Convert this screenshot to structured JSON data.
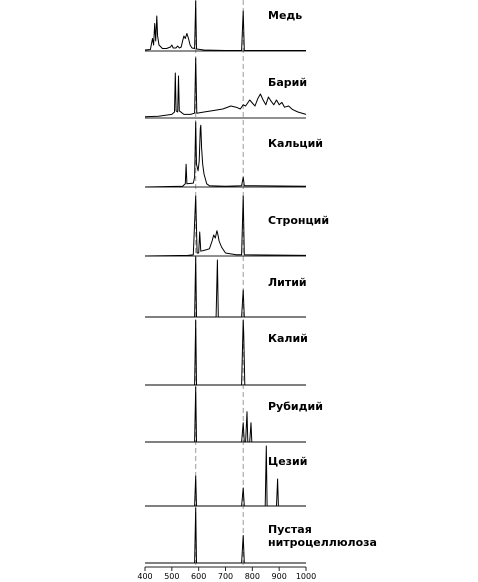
{
  "chart_data": {
    "type": "line",
    "title": "",
    "xlabel": "",
    "ylabel": "",
    "xlim": [
      400,
      1000
    ],
    "x_ticks": [
      "400",
      "500",
      "600",
      "700",
      "800",
      "900",
      "1000"
    ],
    "reference_lines_x": [
      589,
      766
    ],
    "reference_line_style": "dashed gray",
    "series": [
      {
        "name": "Медь",
        "points": [
          [
            400,
            0.02
          ],
          [
            420,
            0.03
          ],
          [
            428,
            0.25
          ],
          [
            432,
            0.12
          ],
          [
            436,
            0.55
          ],
          [
            440,
            0.2
          ],
          [
            444,
            0.7
          ],
          [
            447,
            0.3
          ],
          [
            452,
            0.12
          ],
          [
            465,
            0.05
          ],
          [
            480,
            0.05
          ],
          [
            495,
            0.08
          ],
          [
            500,
            0.12
          ],
          [
            505,
            0.06
          ],
          [
            515,
            0.06
          ],
          [
            522,
            0.1
          ],
          [
            528,
            0.06
          ],
          [
            535,
            0.08
          ],
          [
            540,
            0.2
          ],
          [
            545,
            0.3
          ],
          [
            550,
            0.25
          ],
          [
            556,
            0.35
          ],
          [
            562,
            0.25
          ],
          [
            568,
            0.12
          ],
          [
            575,
            0.06
          ],
          [
            585,
            0.05
          ],
          [
            589,
            1.0
          ],
          [
            592,
            0.04
          ],
          [
            620,
            0.02
          ],
          [
            700,
            0.01
          ],
          [
            760,
            0.01
          ],
          [
            766,
            0.8
          ],
          [
            770,
            0.01
          ],
          [
            1000,
            0.01
          ]
        ]
      },
      {
        "name": "Барий",
        "points": [
          [
            400,
            0.02
          ],
          [
            450,
            0.03
          ],
          [
            500,
            0.06
          ],
          [
            510,
            0.1
          ],
          [
            513,
            0.75
          ],
          [
            516,
            0.12
          ],
          [
            522,
            0.1
          ],
          [
            525,
            0.7
          ],
          [
            528,
            0.12
          ],
          [
            545,
            0.06
          ],
          [
            570,
            0.06
          ],
          [
            585,
            0.08
          ],
          [
            589,
            1.0
          ],
          [
            593,
            0.08
          ],
          [
            620,
            0.1
          ],
          [
            650,
            0.12
          ],
          [
            690,
            0.15
          ],
          [
            720,
            0.2
          ],
          [
            740,
            0.18
          ],
          [
            755,
            0.15
          ],
          [
            766,
            0.22
          ],
          [
            775,
            0.2
          ],
          [
            790,
            0.3
          ],
          [
            800,
            0.25
          ],
          [
            810,
            0.2
          ],
          [
            820,
            0.32
          ],
          [
            830,
            0.4
          ],
          [
            840,
            0.3
          ],
          [
            850,
            0.22
          ],
          [
            860,
            0.35
          ],
          [
            870,
            0.28
          ],
          [
            880,
            0.22
          ],
          [
            890,
            0.3
          ],
          [
            900,
            0.22
          ],
          [
            910,
            0.26
          ],
          [
            920,
            0.18
          ],
          [
            935,
            0.2
          ],
          [
            950,
            0.14
          ],
          [
            970,
            0.1
          ],
          [
            1000,
            0.06
          ]
        ]
      },
      {
        "name": "Кальций",
        "points": [
          [
            400,
            0.0
          ],
          [
            540,
            0.01
          ],
          [
            550,
            0.05
          ],
          [
            553,
            0.35
          ],
          [
            556,
            0.05
          ],
          [
            580,
            0.06
          ],
          [
            585,
            0.15
          ],
          [
            589,
            1.0
          ],
          [
            592,
            0.35
          ],
          [
            598,
            0.25
          ],
          [
            602,
            0.4
          ],
          [
            606,
            0.9
          ],
          [
            608,
            0.95
          ],
          [
            611,
            0.6
          ],
          [
            615,
            0.35
          ],
          [
            620,
            0.2
          ],
          [
            630,
            0.05
          ],
          [
            640,
            0.02
          ],
          [
            700,
            0.01
          ],
          [
            760,
            0.02
          ],
          [
            766,
            0.15
          ],
          [
            770,
            0.02
          ],
          [
            1000,
            0.01
          ]
        ]
      },
      {
        "name": "Стронций",
        "points": [
          [
            400,
            0.0
          ],
          [
            560,
            0.01
          ],
          [
            580,
            0.02
          ],
          [
            589,
            1.0
          ],
          [
            594,
            0.05
          ],
          [
            600,
            0.05
          ],
          [
            604,
            0.4
          ],
          [
            608,
            0.08
          ],
          [
            625,
            0.1
          ],
          [
            640,
            0.12
          ],
          [
            650,
            0.25
          ],
          [
            656,
            0.35
          ],
          [
            662,
            0.3
          ],
          [
            668,
            0.42
          ],
          [
            672,
            0.35
          ],
          [
            676,
            0.25
          ],
          [
            685,
            0.15
          ],
          [
            700,
            0.05
          ],
          [
            740,
            0.02
          ],
          [
            760,
            0.02
          ],
          [
            766,
            1.0
          ],
          [
            770,
            0.02
          ],
          [
            1000,
            0.01
          ]
        ]
      },
      {
        "name": "Литий",
        "points": [
          [
            400,
            0.0
          ],
          [
            585,
            0.0
          ],
          [
            589,
            1.0
          ],
          [
            592,
            0.0
          ],
          [
            665,
            0.0
          ],
          [
            670,
            0.95
          ],
          [
            673,
            0.0
          ],
          [
            760,
            0.0
          ],
          [
            766,
            0.45
          ],
          [
            770,
            0.0
          ],
          [
            1000,
            0.0
          ]
        ]
      },
      {
        "name": "Калий",
        "points": [
          [
            400,
            0.0
          ],
          [
            585,
            0.0
          ],
          [
            589,
            1.0
          ],
          [
            592,
            0.0
          ],
          [
            760,
            0.0
          ],
          [
            764,
            0.7
          ],
          [
            766,
            1.0
          ],
          [
            768,
            0.8
          ],
          [
            772,
            0.0
          ],
          [
            1000,
            0.0
          ]
        ]
      },
      {
        "name": "Рубидий",
        "points": [
          [
            400,
            0.0
          ],
          [
            585,
            0.0
          ],
          [
            589,
            1.0
          ],
          [
            592,
            0.0
          ],
          [
            760,
            0.0
          ],
          [
            766,
            0.35
          ],
          [
            770,
            0.0
          ],
          [
            775,
            0.0
          ],
          [
            780,
            0.55
          ],
          [
            783,
            0.0
          ],
          [
            790,
            0.0
          ],
          [
            795,
            0.35
          ],
          [
            798,
            0.0
          ],
          [
            1000,
            0.0
          ]
        ]
      },
      {
        "name": "Цезий",
        "points": [
          [
            400,
            0.0
          ],
          [
            585,
            0.0
          ],
          [
            589,
            0.5
          ],
          [
            592,
            0.0
          ],
          [
            760,
            0.0
          ],
          [
            766,
            0.3
          ],
          [
            770,
            0.0
          ],
          [
            848,
            0.0
          ],
          [
            852,
            1.0
          ],
          [
            855,
            0.0
          ],
          [
            890,
            0.0
          ],
          [
            894,
            0.45
          ],
          [
            897,
            0.0
          ],
          [
            1000,
            0.0
          ]
        ]
      },
      {
        "name": "Пустая нитроцеллюлоза",
        "points": [
          [
            400,
            0.0
          ],
          [
            585,
            0.0
          ],
          [
            589,
            1.0
          ],
          [
            592,
            0.0
          ],
          [
            760,
            0.0
          ],
          [
            766,
            0.5
          ],
          [
            770,
            0.0
          ],
          [
            1000,
            0.0
          ]
        ]
      }
    ]
  },
  "labels": [
    {
      "lines": [
        "Медь"
      ]
    },
    {
      "lines": [
        "Барий"
      ]
    },
    {
      "lines": [
        "Кальций"
      ]
    },
    {
      "lines": [
        "Стронций"
      ]
    },
    {
      "lines": [
        "Литий"
      ]
    },
    {
      "lines": [
        "Калий"
      ]
    },
    {
      "lines": [
        "Рубидий"
      ]
    },
    {
      "lines": [
        "Цезий"
      ]
    },
    {
      "lines": [
        "Пустая",
        "нитроцеллюлоза"
      ]
    }
  ]
}
